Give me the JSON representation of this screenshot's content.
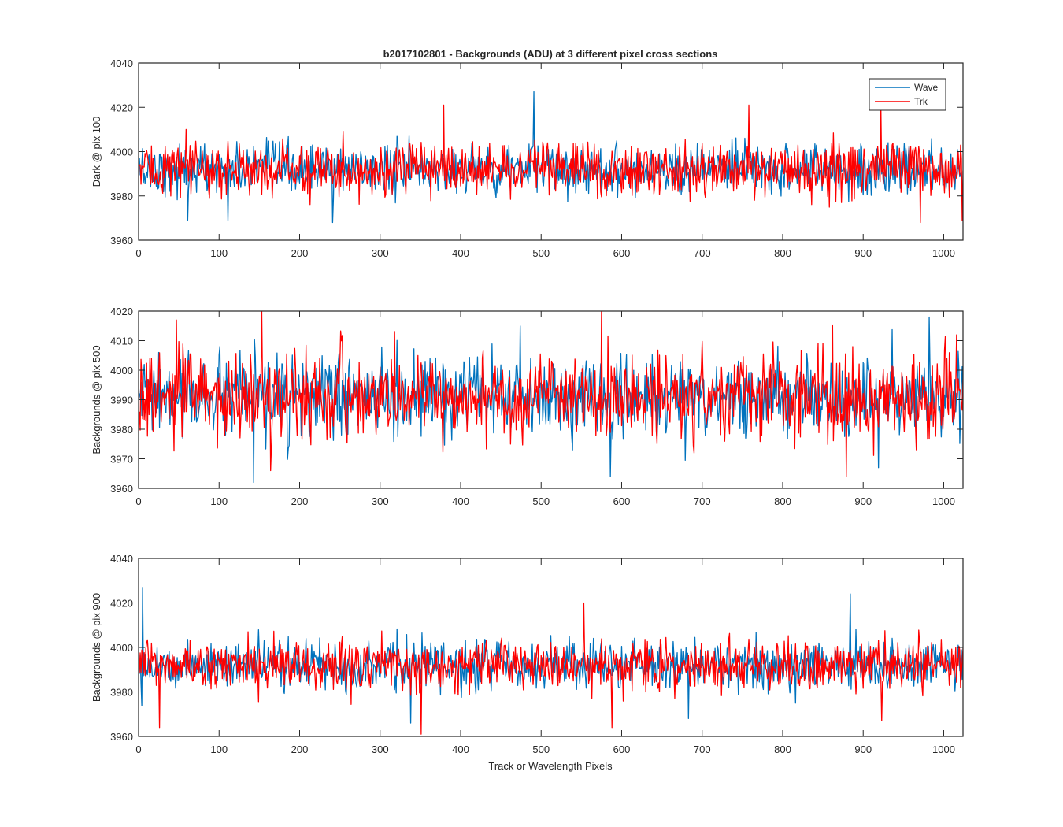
{
  "figure": {
    "title": "b2017102801 - Backgrounds (ADU) at 3 different pixel cross sections"
  },
  "colors": {
    "wave": "#0072BD",
    "trk": "#FF0000",
    "axes": "#262626",
    "background": "#ffffff"
  },
  "legend": {
    "location": "top-right of first panel",
    "entries": [
      {
        "label": "Wave",
        "color": "#0072BD"
      },
      {
        "label": "Trk",
        "color": "#FF0000"
      }
    ]
  },
  "chart_data": [
    {
      "type": "line",
      "title": "b2017102801 - Backgrounds (ADU) at 3 different pixel cross sections",
      "ylabel": "Dark @ pix 100",
      "xlabel": "",
      "xlim": [
        0,
        1024
      ],
      "ylim": [
        3960,
        4040
      ],
      "xticks": [
        0,
        100,
        200,
        300,
        400,
        500,
        600,
        700,
        800,
        900,
        1000
      ],
      "yticks": [
        3960,
        3980,
        4000,
        4020,
        4040
      ],
      "n_points": 1024,
      "series": [
        {
          "name": "Wave",
          "color": "#0072BD",
          "mean": 3992,
          "spread": 5.5,
          "extremes": [
            [
              490,
              4027
            ],
            [
              60,
              3969
            ],
            [
              110,
              3969
            ],
            [
              240,
              3968
            ]
          ]
        },
        {
          "name": "Trk",
          "color": "#FF0000",
          "mean": 3992,
          "spread": 5.8,
          "extremes": [
            [
              378,
              4021
            ],
            [
              757,
              4021
            ],
            [
              921,
              4020
            ],
            [
              970,
              3968
            ],
            [
              1022,
              3969
            ]
          ]
        }
      ]
    },
    {
      "type": "line",
      "ylabel": "Backgrounds @ pix 500",
      "xlabel": "",
      "xlim": [
        0,
        1024
      ],
      "ylim": [
        3960,
        4020
      ],
      "xticks": [
        0,
        100,
        200,
        300,
        400,
        500,
        600,
        700,
        800,
        900,
        1000
      ],
      "yticks": [
        3960,
        3970,
        3980,
        3990,
        4000,
        4010,
        4020
      ],
      "n_points": 1024,
      "series": [
        {
          "name": "Wave",
          "color": "#0072BD",
          "mean": 3991,
          "spread": 6.5,
          "extremes": [
            [
              142,
              3962
            ],
            [
              585,
              3964
            ],
            [
              981,
              4018
            ],
            [
              918,
              3967
            ]
          ]
        },
        {
          "name": "Trk",
          "color": "#FF0000",
          "mean": 3991,
          "spread": 6.8,
          "extremes": [
            [
              152,
              4020
            ],
            [
              574,
              4021
            ],
            [
              46,
              4017
            ],
            [
              163,
              3966
            ],
            [
              878,
              3964
            ]
          ]
        }
      ]
    },
    {
      "type": "line",
      "ylabel": "Backgrounds @ pix 900",
      "xlabel": "Track or Wavelength Pixels",
      "xlim": [
        0,
        1024
      ],
      "ylim": [
        3960,
        4040
      ],
      "xticks": [
        0,
        100,
        200,
        300,
        400,
        500,
        600,
        700,
        800,
        900,
        1000
      ],
      "yticks": [
        3960,
        3980,
        4000,
        4020,
        4040
      ],
      "n_points": 1024,
      "series": [
        {
          "name": "Wave",
          "color": "#0072BD",
          "mean": 3992,
          "spread": 5.2,
          "extremes": [
            [
              4,
              4027
            ],
            [
              883,
              4024
            ],
            [
              337,
              3966
            ],
            [
              682,
              3968
            ]
          ]
        },
        {
          "name": "Trk",
          "color": "#FF0000",
          "mean": 3992,
          "spread": 5.4,
          "extremes": [
            [
              350,
              3961
            ],
            [
              25,
              3964
            ],
            [
              587,
              3964
            ],
            [
              552,
              4020
            ],
            [
              922,
              3967
            ]
          ]
        }
      ]
    }
  ]
}
